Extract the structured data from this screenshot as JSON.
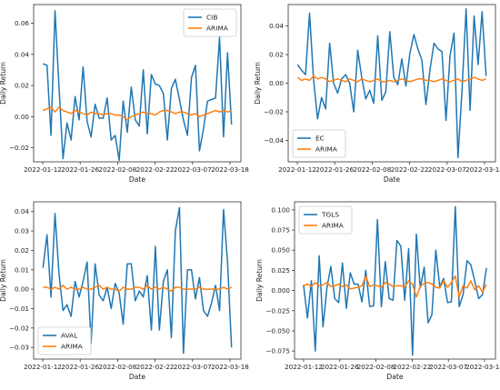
{
  "colors": {
    "actual": "#1f77b4",
    "arima": "#ff7f0e",
    "axis": "#333333"
  },
  "chart_data": [
    {
      "type": "line",
      "xlabel": "Date",
      "ylabel": "Daily Return",
      "x_tick_labels": [
        "2022-01-12",
        "2022-01-26",
        "2022-02-08",
        "2022-02-22",
        "2022-03-07",
        "2022-03-18"
      ],
      "y_ticks": [
        -0.02,
        0.0,
        0.02,
        0.04,
        0.06
      ],
      "y_tick_labels": [
        "−0.02",
        "0.00",
        "0.02",
        "0.04",
        "0.06"
      ],
      "ylim": [
        -0.029,
        0.072
      ],
      "n_obs": 48,
      "legend": "top-right",
      "series": [
        {
          "name": "CIB",
          "values": [
            0.034,
            0.033,
            -0.012,
            0.068,
            0.019,
            -0.027,
            -0.004,
            -0.015,
            0.013,
            -0.002,
            0.032,
            -0.003,
            -0.013,
            0.008,
            -0.001,
            -0.001,
            0.012,
            -0.015,
            -0.012,
            -0.028,
            0.01,
            -0.01,
            0.019,
            -0.002,
            -0.006,
            0.03,
            -0.011,
            0.027,
            0.021,
            0.02,
            0.015,
            -0.015,
            0.018,
            0.024,
            0.011,
            -0.002,
            -0.012,
            0.025,
            0.033,
            -0.022,
            -0.008,
            0.01,
            0.011,
            0.012,
            0.051,
            -0.013,
            0.041,
            -0.005
          ]
        },
        {
          "name": "ARIMA",
          "values": [
            0.004,
            0.005,
            0.006,
            0.003,
            0.006,
            0.004,
            0.003,
            0.002,
            0.004,
            0.003,
            0.002,
            0.001,
            0.003,
            0.002,
            0.002,
            0.001,
            0.002,
            0.002,
            0.001,
            0.001,
            0.0,
            -0.002,
            0.0,
            0.001,
            0.002,
            0.003,
            0.002,
            0.002,
            0.001,
            0.003,
            0.004,
            0.004,
            0.003,
            0.002,
            0.003,
            0.003,
            0.002,
            0.001,
            0.002,
            0.0,
            0.001,
            0.002,
            0.003,
            0.004,
            0.003,
            0.004,
            0.003,
            0.004
          ]
        }
      ]
    },
    {
      "type": "line",
      "xlabel": "Date",
      "ylabel": "Daily Return",
      "x_tick_labels": [
        "2022-01-12",
        "2022-01-26",
        "2022-02-08",
        "2022-02-22",
        "2022-03-07",
        "2022-03-18"
      ],
      "y_ticks": [
        -0.04,
        -0.02,
        0.0,
        0.02,
        0.04
      ],
      "y_tick_labels": [
        "−0.04",
        "−0.02",
        "0.00",
        "0.02",
        "0.04"
      ],
      "ylim": [
        -0.055,
        0.055
      ],
      "n_obs": 48,
      "legend": "bottom-left",
      "series": [
        {
          "name": "EC",
          "values": [
            0.013,
            0.009,
            0.006,
            0.049,
            0.003,
            -0.025,
            -0.01,
            -0.018,
            0.028,
            0.0,
            -0.007,
            0.003,
            0.006,
            0.0,
            -0.02,
            0.023,
            0.004,
            -0.011,
            -0.005,
            -0.014,
            0.033,
            -0.012,
            -0.006,
            0.036,
            0.004,
            -0.001,
            0.017,
            -0.002,
            0.021,
            0.034,
            0.024,
            0.016,
            -0.015,
            0.009,
            0.028,
            0.024,
            0.022,
            -0.026,
            0.019,
            0.035,
            -0.052,
            -0.004,
            0.052,
            -0.019,
            0.047,
            0.013,
            0.05,
            0.005
          ]
        },
        {
          "name": "ARIMA",
          "values": [
            0.004,
            0.002,
            0.003,
            0.002,
            0.005,
            0.003,
            0.004,
            0.003,
            0.001,
            0.002,
            0.003,
            0.002,
            0.001,
            0.003,
            0.002,
            0.001,
            0.003,
            0.002,
            0.001,
            0.002,
            0.003,
            0.001,
            0.001,
            0.002,
            0.001,
            0.002,
            0.003,
            0.002,
            0.001,
            0.002,
            0.003,
            0.003,
            0.002,
            0.002,
            0.001,
            0.002,
            0.003,
            0.002,
            0.001,
            0.002,
            0.003,
            0.001,
            0.002,
            0.003,
            0.004,
            0.003,
            0.002,
            0.003
          ]
        }
      ]
    },
    {
      "type": "line",
      "xlabel": "Date",
      "ylabel": "Daily Return",
      "x_tick_labels": [
        "2022-01-12",
        "2022-01-26",
        "2022-02-08",
        "2022-02-22",
        "2022-03-07",
        "2022-03-18"
      ],
      "y_ticks": [
        -0.03,
        -0.02,
        -0.01,
        0.0,
        0.01,
        0.02,
        0.03,
        0.04
      ],
      "y_tick_labels": [
        "−0.03",
        "−0.02",
        "−0.01",
        "0.00",
        "0.01",
        "0.02",
        "0.03",
        "0.04"
      ],
      "ylim": [
        -0.036,
        0.045
      ],
      "n_obs": 48,
      "legend": "bottom-left",
      "series": [
        {
          "name": "AVAL",
          "values": [
            0.011,
            0.028,
            -0.004,
            0.039,
            0.008,
            -0.011,
            -0.008,
            -0.014,
            0.004,
            -0.004,
            0.004,
            0.014,
            -0.028,
            0.013,
            -0.003,
            -0.006,
            0.001,
            -0.01,
            0.003,
            -0.002,
            -0.018,
            0.013,
            0.013,
            -0.006,
            -0.001,
            -0.004,
            0.007,
            -0.021,
            0.022,
            -0.021,
            0.004,
            0.01,
            -0.025,
            0.03,
            0.042,
            -0.033,
            0.01,
            0.01,
            -0.005,
            0.006,
            -0.011,
            -0.014,
            -0.007,
            0.002,
            -0.011,
            0.041,
            0.014,
            -0.03
          ]
        },
        {
          "name": "ARIMA",
          "values": [
            0.001,
            0.001,
            0.0,
            0.001,
            0.0,
            0.002,
            0.0,
            0.001,
            0.0,
            0.0,
            0.001,
            0.0,
            0.0,
            0.001,
            0.002,
            0.0,
            0.001,
            0.0,
            0.0,
            -0.001,
            0.001,
            0.0,
            0.0,
            0.001,
            0.001,
            0.0,
            0.002,
            0.0,
            0.001,
            0.0,
            0.001,
            0.0,
            -0.001,
            0.001,
            0.001,
            0.0,
            0.0,
            0.0,
            0.0,
            0.001,
            0.0,
            0.0,
            0.0,
            0.0,
            0.0,
            0.001,
            0.0,
            0.001
          ]
        }
      ]
    },
    {
      "type": "line",
      "xlabel": "Date",
      "ylabel": "Daily Return",
      "x_tick_labels": [
        "2022-01-12",
        "2022-01-26",
        "2022-02-08",
        "2022-02-22",
        "2022-03-07",
        "2022-03-18"
      ],
      "y_ticks": [
        -0.075,
        -0.05,
        -0.025,
        0.0,
        0.025,
        0.05,
        0.075,
        0.1
      ],
      "y_tick_labels": [
        "−0.075",
        "−0.050",
        "−0.025",
        "0.000",
        "0.025",
        "0.050",
        "0.075",
        "0.100"
      ],
      "ylim": [
        -0.085,
        0.11
      ],
      "n_obs": 48,
      "legend": "top-left",
      "series": [
        {
          "name": "TGLS",
          "values": [
            0.007,
            -0.034,
            0.012,
            -0.075,
            0.043,
            -0.045,
            0.003,
            0.03,
            -0.01,
            -0.015,
            0.034,
            -0.022,
            0.022,
            0.008,
            0.008,
            -0.014,
            0.025,
            -0.02,
            -0.019,
            0.088,
            -0.02,
            0.036,
            -0.01,
            -0.012,
            0.062,
            0.055,
            -0.012,
            0.052,
            -0.08,
            0.07,
            0.003,
            0.029,
            -0.04,
            -0.03,
            0.05,
            0.005,
            0.015,
            -0.015,
            -0.014,
            0.104,
            -0.02,
            -0.005,
            0.037,
            0.032,
            0.012,
            -0.01,
            -0.005,
            0.028
          ]
        },
        {
          "name": "ARIMA",
          "values": [
            0.006,
            0.008,
            0.005,
            0.01,
            0.006,
            0.007,
            0.01,
            0.005,
            0.006,
            0.008,
            0.005,
            0.007,
            0.002,
            0.003,
            0.004,
            0.006,
            0.018,
            0.005,
            0.007,
            0.006,
            0.004,
            0.01,
            0.008,
            0.005,
            0.006,
            0.006,
            0.004,
            0.012,
            0.008,
            -0.008,
            0.005,
            0.009,
            0.01,
            0.008,
            0.004,
            0.003,
            0.012,
            0.004,
            0.01,
            0.018,
            -0.008,
            0.006,
            0.003,
            0.012,
            0.001,
            0.006,
            -0.002,
            0.008
          ]
        }
      ]
    }
  ]
}
